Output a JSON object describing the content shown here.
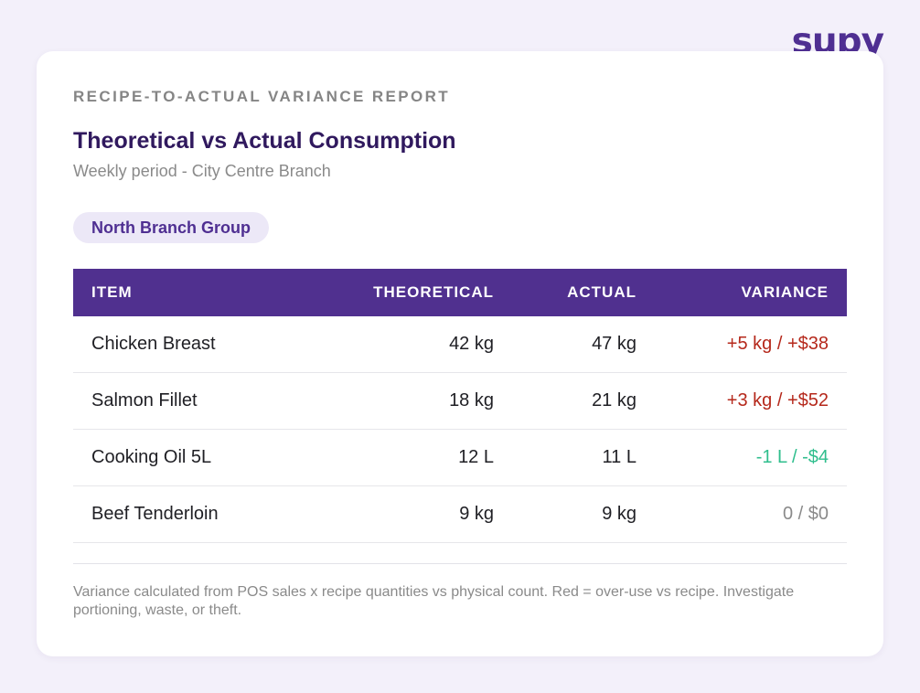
{
  "brand": {
    "logo_text": "supy",
    "color": "#4f2f92"
  },
  "report": {
    "eyebrow": "RECIPE-TO-ACTUAL VARIANCE REPORT",
    "title": "Theoretical vs Actual Consumption",
    "subtitle": "Weekly period - City Centre Branch",
    "branch_tag": "North Branch Group"
  },
  "table": {
    "headers": {
      "item": "ITEM",
      "theoretical": "THEORETICAL",
      "actual": "ACTUAL",
      "variance": "VARIANCE"
    },
    "rows": [
      {
        "item": "Chicken Breast",
        "theoretical": "42 kg",
        "actual": "47 kg",
        "variance": "+5 kg / +$38",
        "status": "over"
      },
      {
        "item": "Salmon Fillet",
        "theoretical": "18 kg",
        "actual": "21 kg",
        "variance": "+3 kg / +$52",
        "status": "over"
      },
      {
        "item": "Cooking Oil 5L",
        "theoretical": "12 L",
        "actual": "11 L",
        "variance": "-1 L / -$4",
        "status": "under"
      },
      {
        "item": "Beef Tenderloin",
        "theoretical": "9 kg",
        "actual": "9 kg",
        "variance": "0 / $0",
        "status": "zero"
      }
    ]
  },
  "footnote": "Variance calculated from POS sales x recipe quantities vs physical count. Red = over-use vs recipe. Investigate portioning, waste, or theft.",
  "colors": {
    "header_bg": "#50308f",
    "over": "#b5281b",
    "under": "#2fbe8d",
    "neutral": "#8a8a8a"
  }
}
